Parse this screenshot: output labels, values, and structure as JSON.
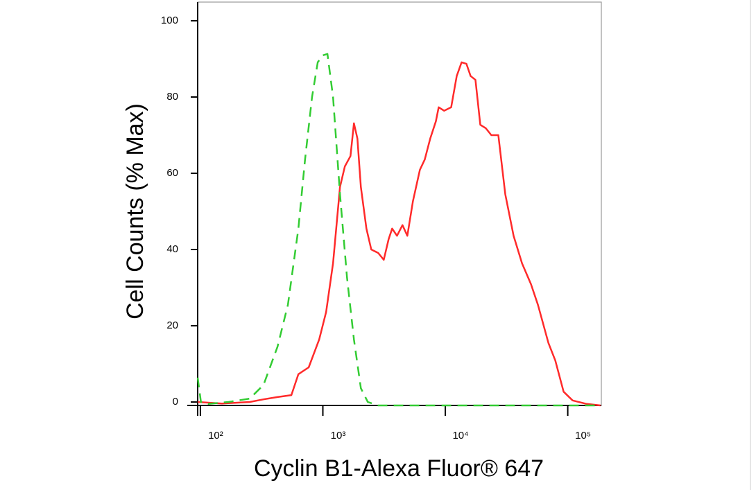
{
  "chart_data": {
    "type": "line",
    "x_label": "Cyclin B1-Alexa Fluor® 647",
    "y_label": "Cell Counts (% Max)",
    "x_scale": "log",
    "xlim": [
      95,
      188000
    ],
    "ylim": [
      -0.9,
      104.9
    ],
    "xticks": [
      {
        "value": 100,
        "label": "10²"
      },
      {
        "value": 1000,
        "label": "10³"
      },
      {
        "value": 10000,
        "label": "10⁴"
      },
      {
        "value": 100000,
        "label": "10⁵"
      }
    ],
    "yticks": [
      0,
      20,
      40,
      60,
      80,
      100
    ],
    "series": [
      {
        "color": "#ff2a2a",
        "dash": false,
        "x": [
          95,
          150,
          253,
          328,
          426,
          553,
          631,
          767,
          933,
          1064,
          1211,
          1380,
          1513,
          1680,
          1794,
          1914,
          2043,
          2268,
          2485,
          2831,
          3142,
          3443,
          3679,
          4030,
          4470,
          4895,
          5441,
          6197,
          6792,
          7534,
          8370,
          8830,
          9790,
          11160,
          12390,
          13580,
          14870,
          16080,
          17620,
          19320,
          21430,
          23770,
          27100,
          30900,
          36120,
          42260,
          50100,
          57100,
          69500,
          79100,
          92500,
          109600,
          142500,
          185000
        ],
        "values": [
          0,
          -0.4,
          0,
          0.7,
          1.3,
          1.8,
          7.3,
          9.1,
          16.4,
          23.6,
          36.4,
          56.4,
          61.8,
          64.5,
          73.1,
          69.1,
          56.4,
          45.5,
          40,
          39.1,
          37.3,
          42.7,
          45.5,
          43.6,
          46.4,
          43.6,
          52.7,
          60.9,
          63.6,
          69.1,
          73.6,
          77.3,
          76.4,
          77.3,
          85.5,
          89.1,
          88.7,
          85.5,
          84.5,
          72.7,
          71.8,
          70,
          70,
          54.5,
          43.6,
          36.4,
          30.9,
          25.5,
          15.5,
          10.9,
          2.7,
          0.4,
          -0.5,
          -0.9
        ]
      },
      {
        "color": "#33cc33",
        "dash": true,
        "x": [
          95,
          101,
          116,
          170,
          253,
          328,
          426,
          518,
          631,
          715,
          816,
          908,
          996,
          1090,
          1211,
          1380,
          1575,
          1794,
          2043,
          2328,
          2831,
          5810,
          21430,
          79100,
          185000
        ],
        "values": [
          6.4,
          0,
          -0.5,
          0,
          0.9,
          4.5,
          14.5,
          25.5,
          45.5,
          63.6,
          80,
          89.1,
          90.9,
          91.3,
          80,
          54.5,
          32.7,
          16.4,
          3.6,
          0,
          -0.9,
          -0.9,
          -0.9,
          -0.9,
          -0.9
        ]
      }
    ]
  }
}
